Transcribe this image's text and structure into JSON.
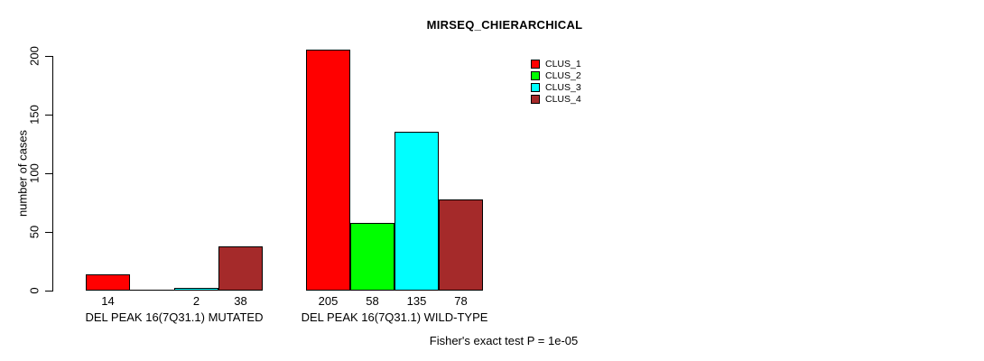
{
  "title": "MIRSEQ_CHIERARCHICAL",
  "chart_data": {
    "type": "bar",
    "title": "MIRSEQ_CHIERARCHICAL",
    "xlabel": "",
    "ylabel": "number of cases",
    "categories": [
      "DEL PEAK 16(7Q31.1) MUTATED",
      "DEL PEAK 16(7Q31.1) WILD-TYPE"
    ],
    "series": [
      {
        "name": "CLUS_1",
        "color": "#FF0000",
        "values": [
          14,
          205
        ],
        "bar_labels": [
          "14",
          "205"
        ]
      },
      {
        "name": "CLUS_2",
        "color": "#00FF00",
        "values": [
          0,
          58
        ],
        "bar_labels": [
          "",
          "58"
        ]
      },
      {
        "name": "CLUS_3",
        "color": "#00FFFF",
        "values": [
          2,
          135
        ],
        "bar_labels": [
          "2",
          "135"
        ]
      },
      {
        "name": "CLUS_4",
        "color": "#A52A2A",
        "values": [
          38,
          78
        ],
        "bar_labels": [
          "38",
          "78"
        ]
      }
    ],
    "yticks": [
      0,
      50,
      100,
      150,
      200
    ],
    "ylim": [
      0,
      208
    ],
    "grid": false,
    "bar_outline_color": "#000000",
    "legend_position": "top-right",
    "legend_entries": [
      "CLUS_1",
      "CLUS_2",
      "CLUS_3",
      "CLUS_4"
    ],
    "annotation": "Fisher's exact test P = 1e-05"
  }
}
